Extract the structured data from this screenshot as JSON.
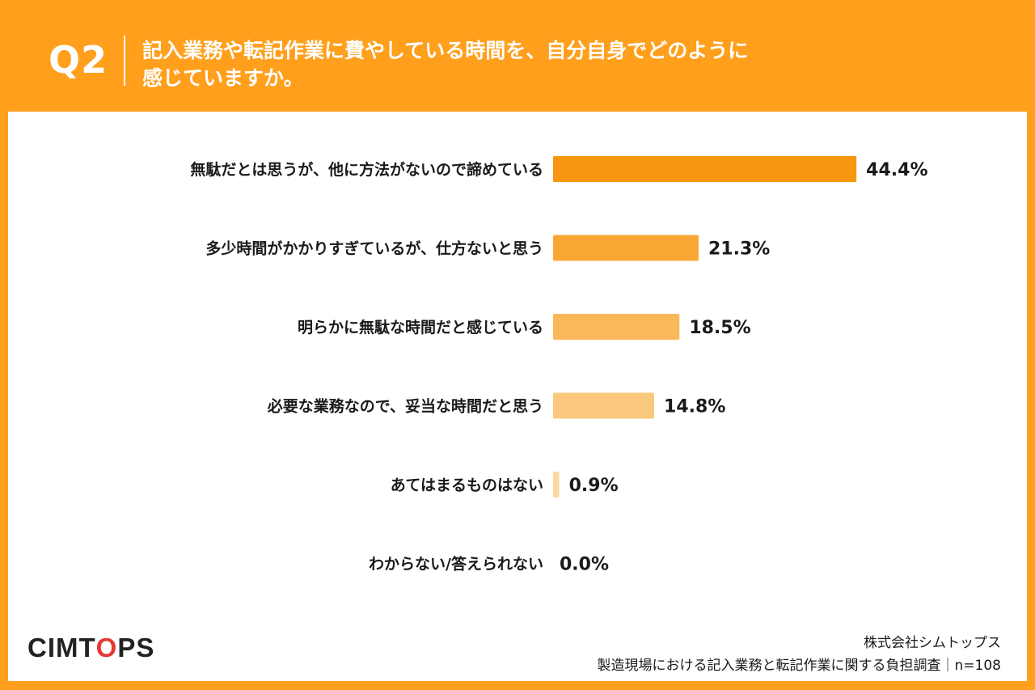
{
  "header": {
    "question_number": "Q2",
    "question_text": "記入業務や転記作業に費やしている時間を、自分自身でどのように\n感じていますか。"
  },
  "chart_data": {
    "type": "bar",
    "orientation": "horizontal",
    "categories": [
      "無駄だとは思うが、他に方法がないので諦めている",
      "多少時間がかかりすぎているが、仕方ないと思う",
      "明らかに無駄な時間だと感じている",
      "必要な業務なので、妥当な時間だと思う",
      "あてはまるものはない",
      "わからない/答えられない"
    ],
    "values": [
      44.4,
      21.3,
      18.5,
      14.8,
      0.9,
      0.0
    ],
    "value_labels": [
      "44.4%",
      "21.3%",
      "18.5%",
      "14.8%",
      "0.9%",
      "0.0%"
    ],
    "unit": "%",
    "colors": [
      "#f7960f",
      "#f8a734",
      "#f9b859",
      "#fac97e",
      "#fbd9a3",
      "#fde9c8"
    ],
    "grid": false,
    "legend": "none"
  },
  "footer": {
    "logo_text_before": "CIMT",
    "logo_text_o": "O",
    "logo_text_after": "PS",
    "company": "株式会社シムトップス",
    "survey": "製造現場における記入業務と転記作業に関する負担調査｜n=108"
  }
}
